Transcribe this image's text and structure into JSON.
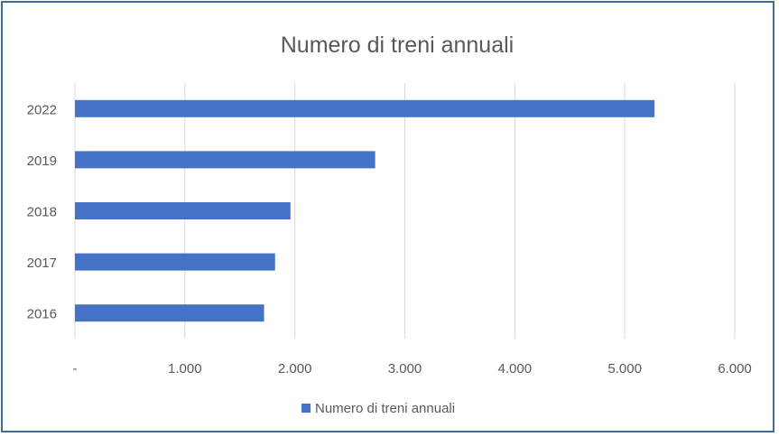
{
  "chart_data": {
    "type": "bar",
    "orientation": "horizontal",
    "title": "Numero di treni annuali",
    "categories": [
      "2022",
      "2019",
      "2018",
      "2017",
      "2016"
    ],
    "series": [
      {
        "name": "Numero di treni annuali",
        "values": [
          5270,
          2730,
          1960,
          1820,
          1720
        ]
      }
    ],
    "xlim": [
      0,
      6000
    ],
    "x_ticks": [
      0,
      1000,
      2000,
      3000,
      4000,
      5000,
      6000
    ],
    "x_tick_labels": [
      "-",
      "1.000",
      "2.000",
      "3.000",
      "4.000",
      "5.000",
      "6.000"
    ],
    "grid": "vertical",
    "legend_position": "bottom",
    "colors": {
      "bar": "#4472c4",
      "grid": "#d9d9d9",
      "text": "#595959",
      "frame": "#3f6d96"
    }
  }
}
